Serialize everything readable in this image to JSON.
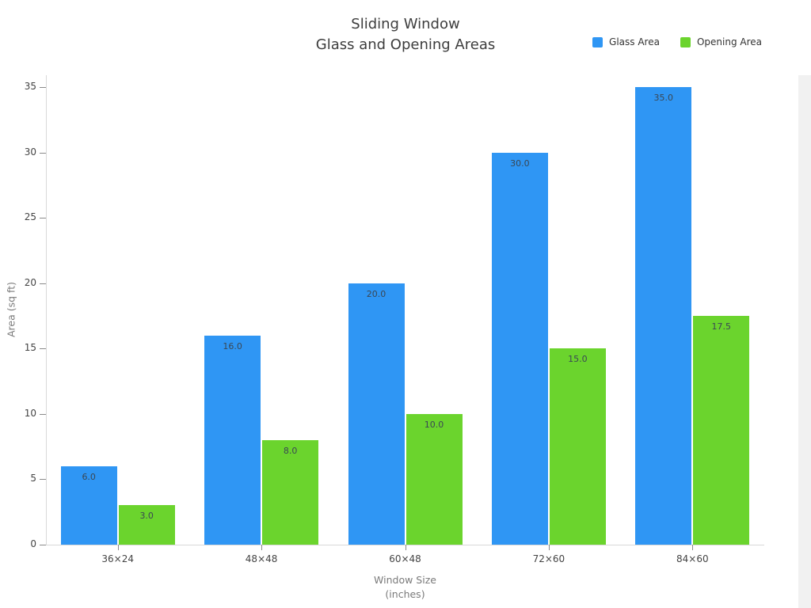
{
  "title": {
    "line1": "Sliding Window",
    "line2": "Glass and Opening Areas"
  },
  "legend": [
    {
      "label": "Glass Area",
      "color": "#2f96f4"
    },
    {
      "label": "Opening Area",
      "color": "#6bd42d"
    }
  ],
  "axes": {
    "ylabel": "Area (sq ft)",
    "xlabel_line1": "Window Size",
    "xlabel_line2": "(inches)"
  },
  "colors": {
    "axis": "#d9d9d9",
    "tick": "#8a8a8a",
    "tick_text": "#444444",
    "axis_title": "#7a7a7a",
    "bar_label": "#3a4754"
  },
  "chart_data": {
    "type": "bar",
    "title": "Sliding Window\nGlass and Opening Areas",
    "categories": [
      "36×24",
      "48×48",
      "60×48",
      "72×60",
      "84×60"
    ],
    "series": [
      {
        "name": "Glass Area",
        "color": "#2f96f4",
        "values": [
          6.0,
          16.0,
          20.0,
          30.0,
          35.0
        ]
      },
      {
        "name": "Opening Area",
        "color": "#6bd42d",
        "values": [
          3.0,
          8.0,
          10.0,
          15.0,
          17.5
        ]
      }
    ],
    "value_labels": [
      [
        "6.0",
        "16.0",
        "20.0",
        "30.0",
        "35.0"
      ],
      [
        "3.0",
        "8.0",
        "10.0",
        "15.0",
        "17.5"
      ]
    ],
    "xlabel": "Window Size (inches)",
    "ylabel": "Area (sq ft)",
    "ylim": [
      0,
      35
    ],
    "yticks": [
      0,
      5,
      10,
      15,
      20,
      25,
      30,
      35
    ],
    "grid": false,
    "legend_position": "top-right"
  }
}
